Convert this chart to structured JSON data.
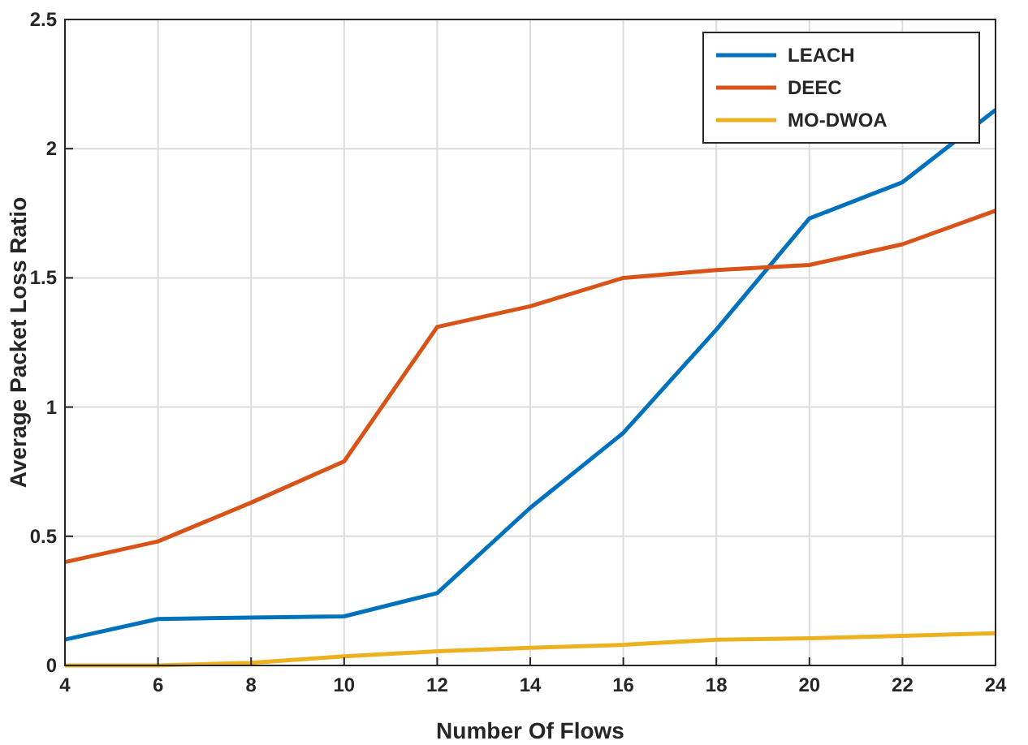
{
  "chart_data": {
    "type": "line",
    "xlabel": "Number Of Flows",
    "ylabel": "Average Packet Loss Ratio",
    "x": [
      4,
      6,
      8,
      10,
      12,
      14,
      16,
      18,
      20,
      22,
      24
    ],
    "series": [
      {
        "name": "LEACH",
        "color": "#0072bd",
        "values": [
          0.1,
          0.18,
          0.185,
          0.19,
          0.28,
          0.61,
          0.9,
          1.3,
          1.73,
          1.87,
          2.15
        ]
      },
      {
        "name": "DEEC",
        "color": "#d95319",
        "values": [
          0.4,
          0.48,
          0.63,
          0.79,
          1.31,
          1.39,
          1.5,
          1.53,
          1.55,
          1.63,
          1.76
        ]
      },
      {
        "name": "MO-DWOA",
        "color": "#edb120",
        "values": [
          0,
          0,
          0.01,
          0.035,
          0.055,
          0.068,
          0.08,
          0.1,
          0.105,
          0.115,
          0.125
        ]
      }
    ],
    "xlim": [
      4,
      24
    ],
    "xticks": [
      4,
      6,
      8,
      10,
      12,
      14,
      16,
      18,
      20,
      22,
      24
    ],
    "ylim": [
      0,
      2.5
    ],
    "yticks": [
      0,
      0.5,
      1,
      1.5,
      2,
      2.5
    ],
    "grid": true,
    "legend": "top right",
    "marker": "none",
    "line_style": "solid"
  }
}
